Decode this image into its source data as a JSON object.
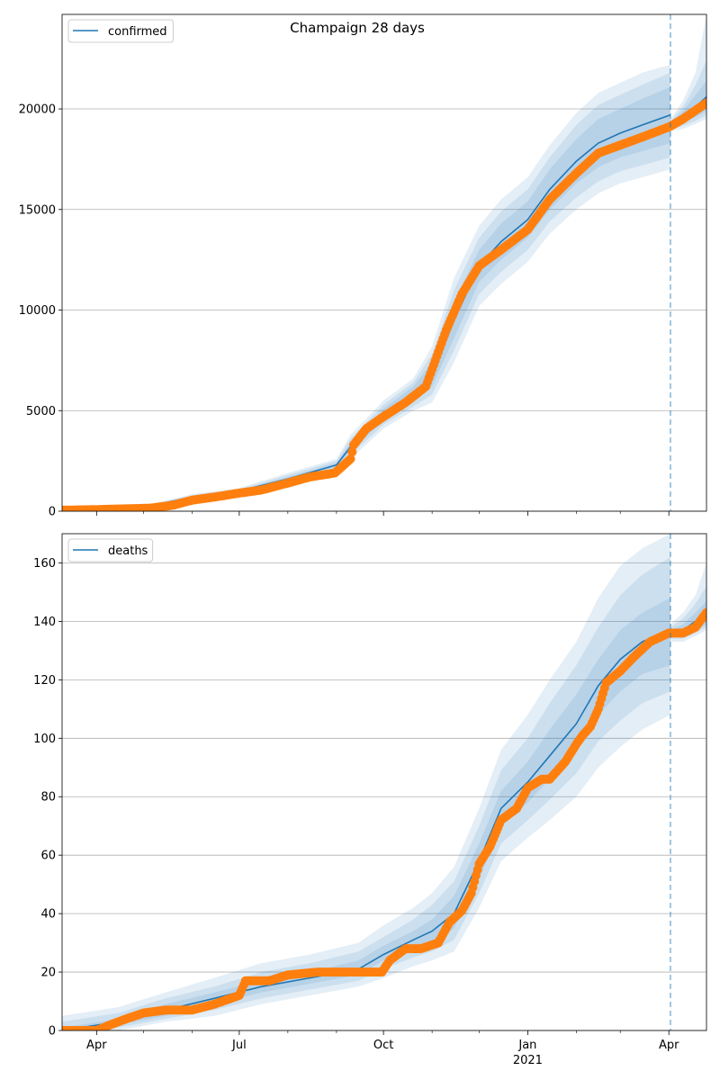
{
  "figure": {
    "title": "Champaign 28 days",
    "xaxis": {
      "date_min": "2020-03-10",
      "date_max": "2021-04-25",
      "major_ticks": [
        {
          "date": "2020-04-01",
          "label": "Apr"
        },
        {
          "date": "2020-07-01",
          "label": "Jul"
        },
        {
          "date": "2020-10-01",
          "label": "Oct"
        },
        {
          "date": "2021-01-01",
          "label": "Jan"
        },
        {
          "date": "2021-04-01",
          "label": "Apr"
        }
      ],
      "year_label": {
        "date": "2021-01-01",
        "label": "2021"
      },
      "minor_ticks": [
        "2020-05-01",
        "2020-06-01",
        "2020-08-01",
        "2020-09-01",
        "2020-11-01",
        "2020-12-01",
        "2021-02-01",
        "2021-03-01"
      ]
    },
    "forecast_start": "2021-04-02"
  },
  "chart_data": [
    {
      "type": "line",
      "title": "Champaign 28 days",
      "legend": {
        "entries": [
          "confirmed"
        ],
        "placement": "top-left"
      },
      "ylim": [
        0,
        24700
      ],
      "yticks": [
        0,
        5000,
        10000,
        15000,
        20000
      ],
      "grid": "horizontal",
      "series": [
        {
          "name": "confirmed",
          "kind": "model",
          "color": "#1f77b4",
          "x": [
            "2020-03-10",
            "2020-04-01",
            "2020-05-01",
            "2020-06-01",
            "2020-07-01",
            "2020-08-01",
            "2020-09-01",
            "2020-09-10",
            "2020-10-01",
            "2020-10-20",
            "2020-11-01",
            "2020-11-15",
            "2020-12-01",
            "2020-12-15",
            "2021-01-01",
            "2021-01-15",
            "2021-02-01",
            "2021-02-15",
            "2021-03-01",
            "2021-03-15",
            "2021-04-02"
          ],
          "y": [
            50,
            100,
            200,
            700,
            1000,
            1600,
            2300,
            3200,
            4800,
            5800,
            6800,
            9500,
            12200,
            13400,
            14500,
            16000,
            17400,
            18300,
            18800,
            19200,
            19700
          ],
          "bands": {
            "inner": [
              [
                50,
                50
              ],
              [
                90,
                110
              ],
              [
                180,
                220
              ],
              [
                650,
                750
              ],
              [
                950,
                1050
              ],
              [
                1500,
                1700
              ],
              [
                2200,
                2400
              ],
              [
                3000,
                3400
              ],
              [
                4500,
                5100
              ],
              [
                5400,
                6200
              ],
              [
                6200,
                7400
              ],
              [
                8600,
                10400
              ],
              [
                11400,
                13000
              ],
              [
                12500,
                14300
              ],
              [
                13600,
                15400
              ],
              [
                15000,
                17000
              ],
              [
                16300,
                18500
              ],
              [
                17100,
                19500
              ],
              [
                17600,
                20000
              ],
              [
                17900,
                20500
              ],
              [
                18300,
                21100
              ]
            ],
            "middle": [
              [
                50,
                50
              ],
              [
                80,
                120
              ],
              [
                160,
                240
              ],
              [
                600,
                800
              ],
              [
                900,
                1100
              ],
              [
                1400,
                1800
              ],
              [
                2100,
                2500
              ],
              [
                2800,
                3600
              ],
              [
                4300,
                5300
              ],
              [
                5200,
                6400
              ],
              [
                5800,
                7800
              ],
              [
                8000,
                11000
              ],
              [
                10800,
                13600
              ],
              [
                11900,
                14900
              ],
              [
                13000,
                16000
              ],
              [
                14400,
                17600
              ],
              [
                15600,
                19200
              ],
              [
                16400,
                20200
              ],
              [
                16900,
                20700
              ],
              [
                17200,
                21200
              ],
              [
                17600,
                21800
              ]
            ],
            "outer": [
              [
                50,
                50
              ],
              [
                70,
                130
              ],
              [
                140,
                260
              ],
              [
                550,
                850
              ],
              [
                850,
                1150
              ],
              [
                1300,
                1900
              ],
              [
                2000,
                2600
              ],
              [
                2600,
                3800
              ],
              [
                4100,
                5500
              ],
              [
                5000,
                6600
              ],
              [
                5400,
                8200
              ],
              [
                7400,
                11600
              ],
              [
                10200,
                14200
              ],
              [
                11300,
                15500
              ],
              [
                12400,
                16600
              ],
              [
                13800,
                18200
              ],
              [
                15000,
                19800
              ],
              [
                15800,
                20800
              ],
              [
                16300,
                21300
              ],
              [
                16600,
                21800
              ],
              [
                17000,
                22200
              ]
            ]
          }
        },
        {
          "name": "",
          "kind": "forecast",
          "color": "#1f77b4",
          "x": [
            "2021-04-02",
            "2021-04-10",
            "2021-04-18",
            "2021-04-25"
          ],
          "y": [
            19200,
            19600,
            20100,
            20600
          ],
          "bands": {
            "inner": [
              [
                19100,
                19300
              ],
              [
                19300,
                19900
              ],
              [
                19600,
                20700
              ],
              [
                19900,
                21400
              ]
            ],
            "middle": [
              [
                19000,
                19400
              ],
              [
                19150,
                20100
              ],
              [
                19400,
                21200
              ],
              [
                19700,
                22400
              ]
            ],
            "outer": [
              [
                18900,
                19500
              ],
              [
                19000,
                20400
              ],
              [
                19250,
                21800
              ],
              [
                19500,
                24700
              ]
            ]
          }
        },
        {
          "name": "",
          "kind": "observed",
          "color": "#ff7f0e",
          "x": [
            "2020-03-10",
            "2020-04-01",
            "2020-04-20",
            "2020-05-05",
            "2020-05-20",
            "2020-06-01",
            "2020-06-15",
            "2020-07-01",
            "2020-07-15",
            "2020-08-01",
            "2020-08-15",
            "2020-08-31",
            "2020-09-10",
            "2020-09-12",
            "2020-09-20",
            "2020-10-01",
            "2020-10-15",
            "2020-10-28",
            "2020-11-10",
            "2020-11-20",
            "2020-12-01",
            "2020-12-15",
            "2021-01-01",
            "2021-01-15",
            "2021-02-01",
            "2021-02-15",
            "2021-03-01",
            "2021-03-15",
            "2021-04-01",
            "2021-04-10",
            "2021-04-25"
          ],
          "y": [
            50,
            80,
            120,
            150,
            300,
            550,
            700,
            900,
            1050,
            1400,
            1700,
            1900,
            2600,
            3300,
            4100,
            4700,
            5400,
            6200,
            9000,
            10800,
            12200,
            13000,
            14000,
            15500,
            16800,
            17800,
            18200,
            18600,
            19100,
            19500,
            20300
          ]
        }
      ]
    },
    {
      "type": "line",
      "title": "",
      "legend": {
        "entries": [
          "deaths"
        ],
        "placement": "top-left"
      },
      "ylim": [
        0,
        170
      ],
      "yticks": [
        0,
        20,
        40,
        60,
        80,
        100,
        120,
        140,
        160
      ],
      "grid": "horizontal",
      "series": [
        {
          "name": "deaths",
          "kind": "model",
          "color": "#1f77b4",
          "x": [
            "2020-03-10",
            "2020-04-15",
            "2020-05-15",
            "2020-06-15",
            "2020-07-15",
            "2020-08-15",
            "2020-09-15",
            "2020-10-01",
            "2020-10-20",
            "2020-11-01",
            "2020-11-15",
            "2020-12-01",
            "2020-12-15",
            "2021-01-01",
            "2021-01-15",
            "2021-02-01",
            "2021-02-15",
            "2021-03-01",
            "2021-03-15",
            "2021-04-02"
          ],
          "y": [
            0,
            3,
            7,
            11,
            15,
            18,
            21,
            26,
            31,
            34,
            40,
            58,
            76,
            85,
            94,
            105,
            118,
            127,
            133,
            137
          ],
          "bands": {
            "inner": [
              [
                0,
                1
              ],
              [
                2,
                4
              ],
              [
                5,
                9
              ],
              [
                9,
                13
              ],
              [
                13,
                17
              ],
              [
                16,
                20
              ],
              [
                19,
                24
              ],
              [
                24,
                29
              ],
              [
                28,
                34
              ],
              [
                30,
                38
              ],
              [
                35,
                46
              ],
              [
                52,
                64
              ],
              [
                70,
                82
              ],
              [
                78,
                92
              ],
              [
                86,
                103
              ],
              [
                96,
                115
              ],
              [
                108,
                127
              ],
              [
                116,
                137
              ],
              [
                122,
                143
              ],
              [
                125,
                148
              ]
            ],
            "middle": [
              [
                0,
                3
              ],
              [
                1,
                6
              ],
              [
                4,
                11
              ],
              [
                7,
                15
              ],
              [
                11,
                20
              ],
              [
                14,
                23
              ],
              [
                17,
                27
              ],
              [
                21,
                32
              ],
              [
                25,
                38
              ],
              [
                27,
                43
              ],
              [
                31,
                51
              ],
              [
                47,
                70
              ],
              [
                64,
                89
              ],
              [
                72,
                100
              ],
              [
                79,
                112
              ],
              [
                88,
                125
              ],
              [
                99,
                138
              ],
              [
                106,
                149
              ],
              [
                112,
                156
              ],
              [
                116,
                162
              ]
            ],
            "outer": [
              [
                0,
                5
              ],
              [
                0,
                8
              ],
              [
                3,
                13
              ],
              [
                5,
                18
              ],
              [
                9,
                23
              ],
              [
                12,
                26
              ],
              [
                15,
                30
              ],
              [
                18,
                36
              ],
              [
                22,
                42
              ],
              [
                24,
                47
              ],
              [
                27,
                56
              ],
              [
                42,
                76
              ],
              [
                58,
                96
              ],
              [
                66,
                108
              ],
              [
                72,
                120
              ],
              [
                80,
                133
              ],
              [
                90,
                148
              ],
              [
                97,
                159
              ],
              [
                103,
                165
              ],
              [
                108,
                170
              ]
            ]
          }
        },
        {
          "name": "",
          "kind": "forecast",
          "color": "#1f77b4",
          "x": [
            "2021-04-02",
            "2021-04-10",
            "2021-04-18",
            "2021-04-25"
          ],
          "y": [
            136,
            137,
            140,
            143
          ],
          "bands": {
            "inner": [
              [
                135,
                137
              ],
              [
                135,
                139
              ],
              [
                137,
                143
              ],
              [
                139,
                147
              ]
            ],
            "middle": [
              [
                134,
                138
              ],
              [
                134,
                141
              ],
              [
                136,
                146
              ],
              [
                138,
                152
              ]
            ],
            "outer": [
              [
                133,
                139
              ],
              [
                133,
                143
              ],
              [
                135,
                149
              ],
              [
                137,
                160
              ]
            ]
          }
        },
        {
          "name": "",
          "kind": "observed",
          "color": "#ff7f0e",
          "x": [
            "2020-03-10",
            "2020-04-01",
            "2020-04-10",
            "2020-04-20",
            "2020-05-01",
            "2020-05-15",
            "2020-06-01",
            "2020-06-15",
            "2020-07-01",
            "2020-07-05",
            "2020-07-20",
            "2020-08-01",
            "2020-08-20",
            "2020-09-15",
            "2020-09-30",
            "2020-10-05",
            "2020-10-15",
            "2020-10-25",
            "2020-11-05",
            "2020-11-12",
            "2020-11-20",
            "2020-11-26",
            "2020-12-01",
            "2020-12-08",
            "2020-12-15",
            "2020-12-25",
            "2021-01-01",
            "2021-01-10",
            "2021-01-15",
            "2021-01-25",
            "2021-02-01",
            "2021-02-05",
            "2021-02-10",
            "2021-02-15",
            "2021-02-20",
            "2021-03-01",
            "2021-03-10",
            "2021-03-20",
            "2021-04-01",
            "2021-04-10",
            "2021-04-18",
            "2021-04-25"
          ],
          "y": [
            0,
            0,
            2,
            4,
            6,
            7,
            7,
            9,
            12,
            17,
            17,
            19,
            20,
            20,
            20,
            24,
            28,
            28,
            30,
            37,
            41,
            47,
            57,
            63,
            72,
            76,
            83,
            86,
            86,
            92,
            98,
            101,
            104,
            110,
            119,
            123,
            128,
            133,
            136,
            136,
            138,
            143
          ]
        }
      ]
    }
  ]
}
